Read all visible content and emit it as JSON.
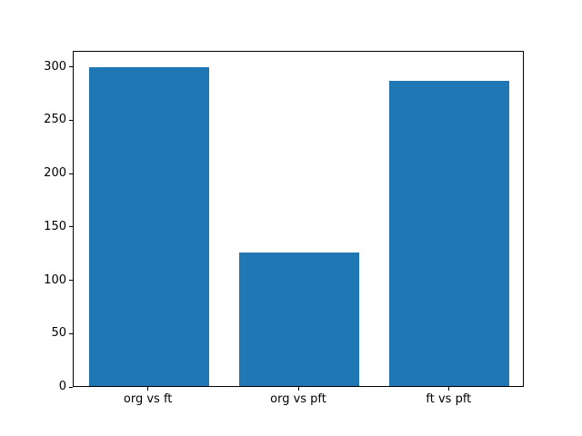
{
  "figure": {
    "background": "#ffffff",
    "frame_color": "#000000"
  },
  "chart_data": {
    "type": "bar",
    "categories": [
      "org vs ft",
      "org vs pft",
      "ft vs pft"
    ],
    "values": [
      299,
      125,
      286
    ],
    "title": "",
    "xlabel": "",
    "ylabel": "",
    "ylim": [
      0,
      315
    ],
    "yticks": [
      0,
      50,
      100,
      150,
      200,
      250,
      300
    ],
    "bar_color": "#1f77b4",
    "bar_width_fraction": 0.8,
    "grid": false,
    "legend": null
  }
}
